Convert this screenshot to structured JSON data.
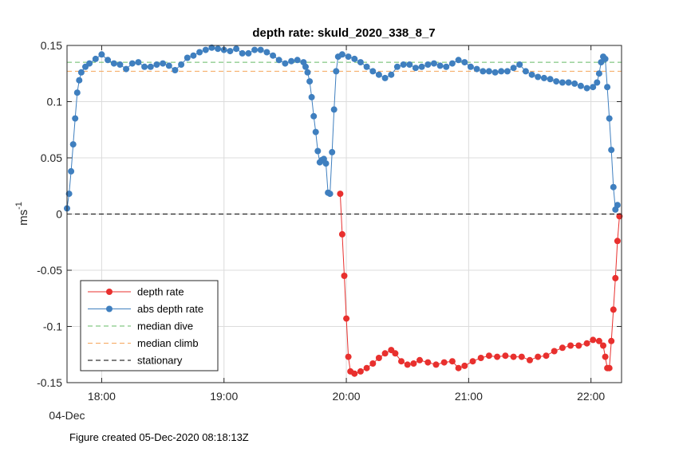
{
  "chart_data": {
    "type": "line",
    "title": "depth rate: skuld_2020_338_8_7",
    "ylabel": "ms",
    "ylabel_superscript": "-1",
    "xlabel": "",
    "x_date_label": "04-Dec",
    "xlim": [
      "17:43",
      "22:15"
    ],
    "ylim": [
      -0.15,
      0.15
    ],
    "x_ticks": [
      "18:00",
      "19:00",
      "20:00",
      "21:00",
      "22:00"
    ],
    "y_ticks": [
      "0.15",
      "0.1",
      "0.05",
      "0",
      "-0.05",
      "-0.1",
      "-0.15"
    ],
    "grid": true,
    "legend_position": "bottom-left",
    "colors": {
      "depth_rate": "#e8302e",
      "abs_depth_rate": "#3f7fbf",
      "median_dive": "#66bb66",
      "median_climb": "#f5a55a",
      "stationary": "#000000",
      "grid": "#dcdcdc"
    },
    "series": [
      {
        "name": "depth rate",
        "style": "solid-dot",
        "points": [
          [
            "19:57",
            0.018
          ],
          [
            "19:58",
            -0.018
          ],
          [
            "19:59",
            -0.055
          ],
          [
            "20:00",
            -0.093
          ],
          [
            "20:01",
            -0.127
          ],
          [
            "20:02",
            -0.14
          ],
          [
            "20:04",
            -0.142
          ],
          [
            "20:07",
            -0.14
          ],
          [
            "20:10",
            -0.137
          ],
          [
            "20:13",
            -0.133
          ],
          [
            "20:16",
            -0.128
          ],
          [
            "20:19",
            -0.124
          ],
          [
            "20:22",
            -0.121
          ],
          [
            "20:24",
            -0.124
          ],
          [
            "20:27",
            -0.131
          ],
          [
            "20:30",
            -0.134
          ],
          [
            "20:33",
            -0.133
          ],
          [
            "20:36",
            -0.13
          ],
          [
            "20:40",
            -0.132
          ],
          [
            "20:44",
            -0.134
          ],
          [
            "20:48",
            -0.132
          ],
          [
            "20:52",
            -0.131
          ],
          [
            "20:55",
            -0.137
          ],
          [
            "20:58",
            -0.135
          ],
          [
            "21:02",
            -0.131
          ],
          [
            "21:06",
            -0.128
          ],
          [
            "21:10",
            -0.126
          ],
          [
            "21:14",
            -0.127
          ],
          [
            "21:18",
            -0.126
          ],
          [
            "21:22",
            -0.127
          ],
          [
            "21:26",
            -0.127
          ],
          [
            "21:30",
            -0.13
          ],
          [
            "21:34",
            -0.127
          ],
          [
            "21:38",
            -0.126
          ],
          [
            "21:42",
            -0.122
          ],
          [
            "21:46",
            -0.119
          ],
          [
            "21:50",
            -0.117
          ],
          [
            "21:54",
            -0.117
          ],
          [
            "21:58",
            -0.115
          ],
          [
            "22:01",
            -0.112
          ],
          [
            "22:04",
            -0.113
          ],
          [
            "22:06",
            -0.117
          ],
          [
            "22:07",
            -0.127
          ],
          [
            "22:08",
            -0.137
          ],
          [
            "22:09",
            -0.137
          ],
          [
            "22:10",
            -0.113
          ],
          [
            "22:11",
            -0.085
          ],
          [
            "22:12",
            -0.057
          ],
          [
            "22:13",
            -0.024
          ],
          [
            "22:14",
            -0.002
          ]
        ]
      },
      {
        "name": "abs depth rate",
        "style": "solid-dot",
        "points": [
          [
            "17:43",
            0.005
          ],
          [
            "17:44",
            0.018
          ],
          [
            "17:45",
            0.038
          ],
          [
            "17:46",
            0.062
          ],
          [
            "17:47",
            0.085
          ],
          [
            "17:48",
            0.108
          ],
          [
            "17:49",
            0.119
          ],
          [
            "17:50",
            0.126
          ],
          [
            "17:52",
            0.131
          ],
          [
            "17:54",
            0.134
          ],
          [
            "17:57",
            0.138
          ],
          [
            "18:00",
            0.142
          ],
          [
            "18:03",
            0.137
          ],
          [
            "18:06",
            0.134
          ],
          [
            "18:09",
            0.133
          ],
          [
            "18:12",
            0.129
          ],
          [
            "18:15",
            0.134
          ],
          [
            "18:18",
            0.135
          ],
          [
            "18:21",
            0.131
          ],
          [
            "18:24",
            0.131
          ],
          [
            "18:27",
            0.133
          ],
          [
            "18:30",
            0.134
          ],
          [
            "18:33",
            0.132
          ],
          [
            "18:36",
            0.128
          ],
          [
            "18:39",
            0.133
          ],
          [
            "18:42",
            0.139
          ],
          [
            "18:45",
            0.141
          ],
          [
            "18:48",
            0.144
          ],
          [
            "18:51",
            0.146
          ],
          [
            "18:54",
            0.148
          ],
          [
            "18:57",
            0.147
          ],
          [
            "19:00",
            0.146
          ],
          [
            "19:03",
            0.145
          ],
          [
            "19:06",
            0.147
          ],
          [
            "19:09",
            0.143
          ],
          [
            "19:12",
            0.143
          ],
          [
            "19:15",
            0.146
          ],
          [
            "19:18",
            0.146
          ],
          [
            "19:21",
            0.144
          ],
          [
            "19:24",
            0.141
          ],
          [
            "19:27",
            0.137
          ],
          [
            "19:30",
            0.134
          ],
          [
            "19:33",
            0.136
          ],
          [
            "19:36",
            0.137
          ],
          [
            "19:39",
            0.135
          ],
          [
            "19:40",
            0.131
          ],
          [
            "19:41",
            0.126
          ],
          [
            "19:42",
            0.118
          ],
          [
            "19:43",
            0.104
          ],
          [
            "19:44",
            0.087
          ],
          [
            "19:45",
            0.073
          ],
          [
            "19:46",
            0.056
          ],
          [
            "19:47",
            0.046
          ],
          [
            "19:48",
            0.048
          ],
          [
            "19:49",
            0.049
          ],
          [
            "19:50",
            0.045
          ],
          [
            "19:51",
            0.019
          ],
          [
            "19:52",
            0.018
          ],
          [
            "19:53",
            0.055
          ],
          [
            "19:54",
            0.093
          ],
          [
            "19:55",
            0.127
          ],
          [
            "19:56",
            0.14
          ],
          [
            "19:58",
            0.142
          ],
          [
            "20:01",
            0.14
          ],
          [
            "20:04",
            0.138
          ],
          [
            "20:07",
            0.135
          ],
          [
            "20:10",
            0.131
          ],
          [
            "20:13",
            0.127
          ],
          [
            "20:16",
            0.124
          ],
          [
            "20:19",
            0.121
          ],
          [
            "20:22",
            0.124
          ],
          [
            "20:25",
            0.131
          ],
          [
            "20:28",
            0.133
          ],
          [
            "20:31",
            0.133
          ],
          [
            "20:34",
            0.13
          ],
          [
            "20:37",
            0.131
          ],
          [
            "20:40",
            0.133
          ],
          [
            "20:43",
            0.134
          ],
          [
            "20:46",
            0.132
          ],
          [
            "20:49",
            0.131
          ],
          [
            "20:52",
            0.134
          ],
          [
            "20:55",
            0.137
          ],
          [
            "20:58",
            0.135
          ],
          [
            "21:01",
            0.131
          ],
          [
            "21:04",
            0.129
          ],
          [
            "21:07",
            0.127
          ],
          [
            "21:10",
            0.127
          ],
          [
            "21:13",
            0.126
          ],
          [
            "21:16",
            0.127
          ],
          [
            "21:19",
            0.127
          ],
          [
            "21:22",
            0.13
          ],
          [
            "21:25",
            0.133
          ],
          [
            "21:28",
            0.127
          ],
          [
            "21:31",
            0.124
          ],
          [
            "21:34",
            0.122
          ],
          [
            "21:37",
            0.121
          ],
          [
            "21:40",
            0.12
          ],
          [
            "21:43",
            0.118
          ],
          [
            "21:46",
            0.117
          ],
          [
            "21:49",
            0.117
          ],
          [
            "21:52",
            0.116
          ],
          [
            "21:55",
            0.114
          ],
          [
            "21:58",
            0.112
          ],
          [
            "22:01",
            0.113
          ],
          [
            "22:03",
            0.117
          ],
          [
            "22:04",
            0.125
          ],
          [
            "22:05",
            0.135
          ],
          [
            "22:06",
            0.14
          ],
          [
            "22:07",
            0.138
          ],
          [
            "22:08",
            0.113
          ],
          [
            "22:09",
            0.085
          ],
          [
            "22:10",
            0.057
          ],
          [
            "22:11",
            0.024
          ],
          [
            "22:12",
            0.004
          ],
          [
            "22:13",
            0.008
          ]
        ]
      },
      {
        "name": "median dive",
        "style": "dashed",
        "value": 0.135
      },
      {
        "name": "median climb",
        "style": "dashed",
        "value": 0.127
      },
      {
        "name": "stationary",
        "style": "dashed",
        "value": 0
      }
    ]
  },
  "footer": {
    "text": "Figure created 05-Dec-2020 08:18:13Z"
  }
}
